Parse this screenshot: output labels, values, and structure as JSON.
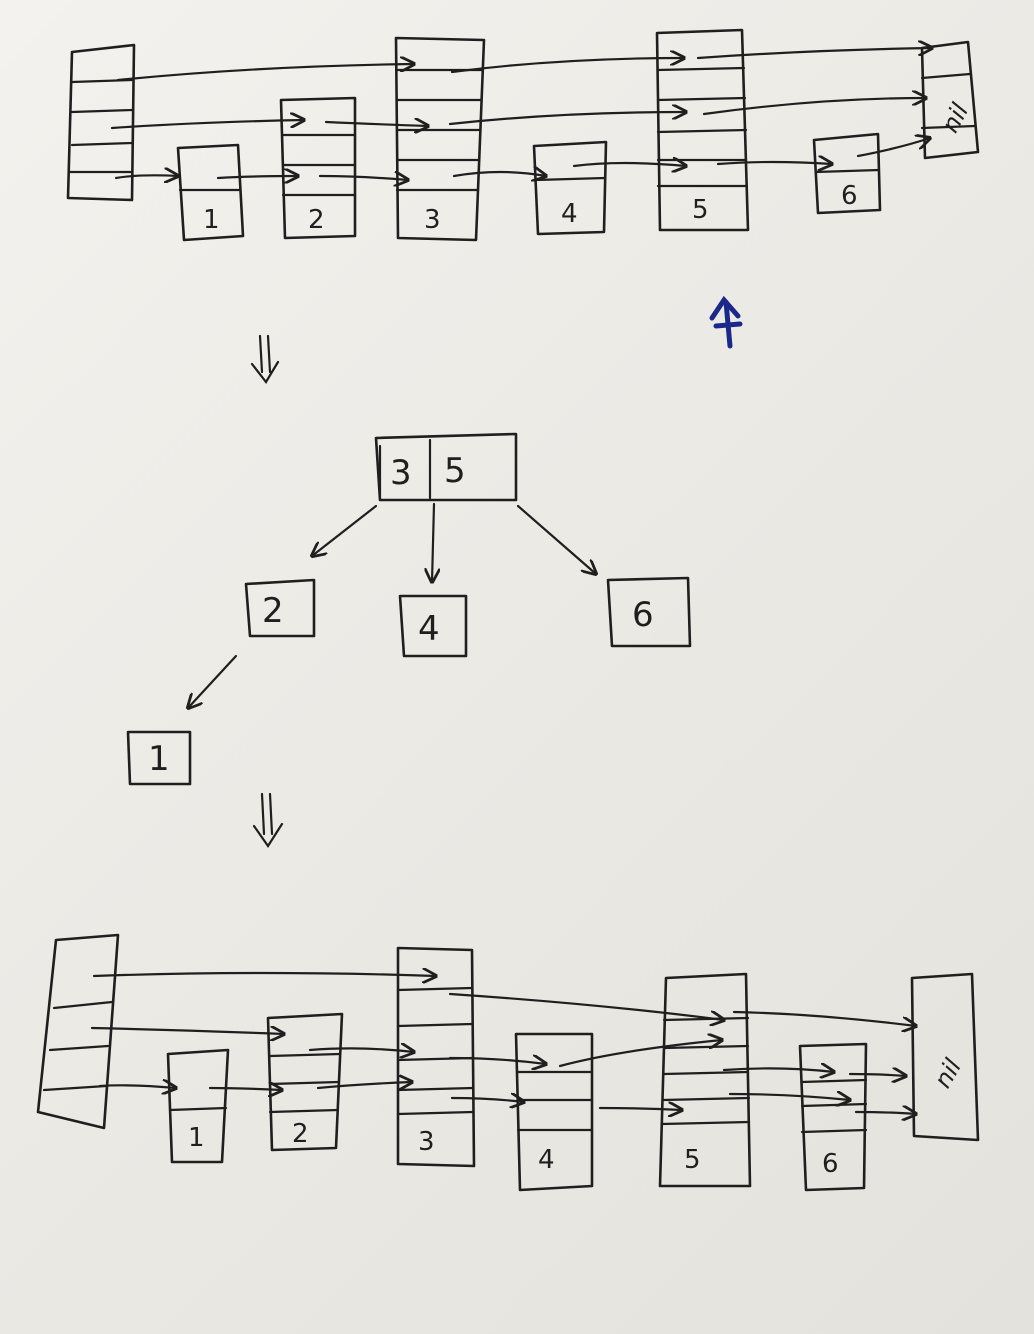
{
  "skip_list_top": {
    "node_keys": [
      "1",
      "2",
      "3",
      "4",
      "5",
      "6"
    ],
    "terminal_label": "nil"
  },
  "tree": {
    "root_keys": [
      "3",
      "5"
    ],
    "children": [
      "2",
      "4",
      "6"
    ],
    "grandchild": "1"
  },
  "skip_list_bottom": {
    "node_keys": [
      "1",
      "2",
      "3",
      "4",
      "5",
      "6"
    ],
    "terminal_label": "nil"
  },
  "colors": {
    "ink": "#1f1f1f",
    "paper": "#f0efeb",
    "blue_mark": "#1b2a8a"
  }
}
